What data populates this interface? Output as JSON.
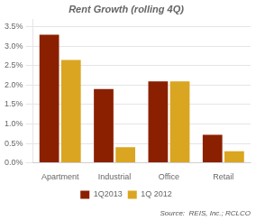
{
  "chart_data": {
    "type": "bar",
    "title": "Rent Growth (rolling 4Q)",
    "categories": [
      "Apartment",
      "Industrial",
      "Office",
      "Retail"
    ],
    "series": [
      {
        "name": "1Q2013",
        "color": "#8B2000",
        "values": [
          0.033,
          0.019,
          0.021,
          0.0072
        ]
      },
      {
        "name": "1Q 2012",
        "color": "#DAA520",
        "values": [
          0.0265,
          0.004,
          0.021,
          0.003
        ]
      }
    ],
    "ylim": [
      0,
      0.037
    ],
    "yticks": [
      {
        "value": 0.0,
        "label": "0.0%"
      },
      {
        "value": 0.005,
        "label": "0.5%"
      },
      {
        "value": 0.01,
        "label": "1.0%"
      },
      {
        "value": 0.015,
        "label": "1.5%"
      },
      {
        "value": 0.02,
        "label": "2.0%"
      },
      {
        "value": 0.025,
        "label": "2.5%"
      },
      {
        "value": 0.03,
        "label": "3.0%"
      },
      {
        "value": 0.035,
        "label": "3.5%"
      }
    ],
    "grid": true,
    "legend": "bottom",
    "annotations": [
      "Source:  REIS, Inc.; RCLCO"
    ]
  }
}
